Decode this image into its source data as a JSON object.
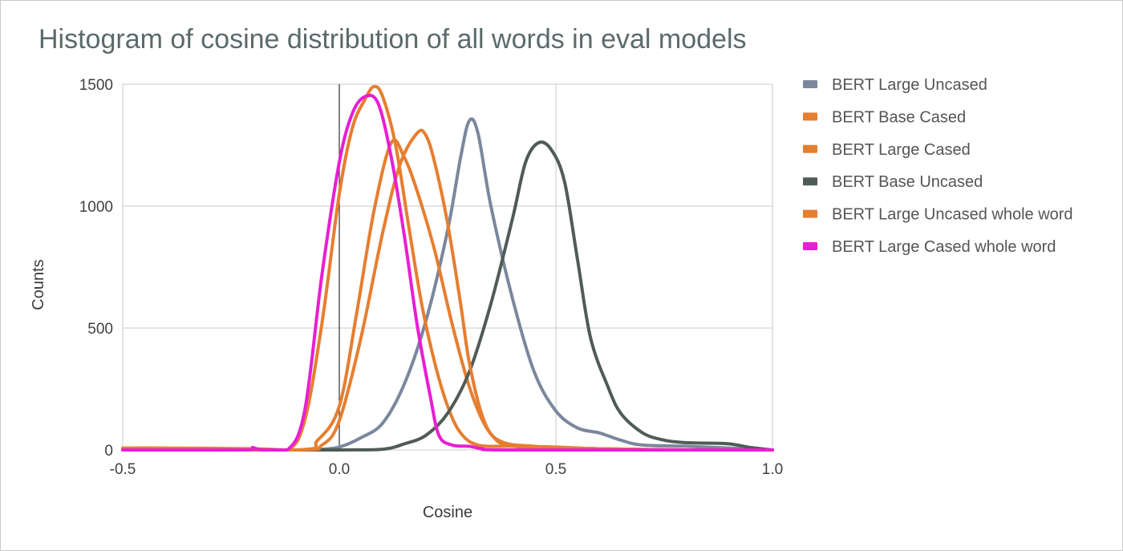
{
  "chart_data": {
    "type": "line",
    "title": "Histogram of cosine distribution of all words in eval models",
    "xlabel": "Cosine",
    "ylabel": "Counts",
    "xlim": [
      -0.5,
      1.0
    ],
    "ylim": [
      0,
      1500
    ],
    "x_ticks": [
      "-0.5",
      "0.0",
      "0.5",
      "1.0"
    ],
    "x_tick_values": [
      -0.5,
      0.0,
      0.5,
      1.0
    ],
    "y_ticks": [
      "0",
      "500",
      "1000",
      "1500"
    ],
    "y_tick_values": [
      0,
      500,
      1000,
      1500
    ],
    "grid": true,
    "legend_position": "right",
    "series": [
      {
        "name": "BERT Large Uncased",
        "color": "#7b879c",
        "points": [
          [
            -0.5,
            0
          ],
          [
            -0.1,
            0
          ],
          [
            -0.05,
            2
          ],
          [
            0.0,
            12
          ],
          [
            0.05,
            50
          ],
          [
            0.1,
            110
          ],
          [
            0.15,
            270
          ],
          [
            0.2,
            530
          ],
          [
            0.25,
            900
          ],
          [
            0.28,
            1200
          ],
          [
            0.3,
            1350
          ],
          [
            0.32,
            1300
          ],
          [
            0.35,
            1000
          ],
          [
            0.4,
            620
          ],
          [
            0.45,
            320
          ],
          [
            0.5,
            160
          ],
          [
            0.55,
            90
          ],
          [
            0.6,
            70
          ],
          [
            0.65,
            40
          ],
          [
            0.7,
            20
          ],
          [
            0.8,
            15
          ],
          [
            0.9,
            8
          ],
          [
            1.0,
            0
          ]
        ]
      },
      {
        "name": "BERT Base Cased",
        "color": "#e67e30",
        "points": [
          [
            -0.5,
            8
          ],
          [
            -0.4,
            8
          ],
          [
            -0.2,
            5
          ],
          [
            -0.12,
            0
          ],
          [
            -0.08,
            120
          ],
          [
            -0.04,
            520
          ],
          [
            0.0,
            1050
          ],
          [
            0.03,
            1320
          ],
          [
            0.06,
            1440
          ],
          [
            0.08,
            1490
          ],
          [
            0.1,
            1450
          ],
          [
            0.13,
            1250
          ],
          [
            0.16,
            920
          ],
          [
            0.19,
            600
          ],
          [
            0.22,
            360
          ],
          [
            0.25,
            180
          ],
          [
            0.28,
            70
          ],
          [
            0.32,
            20
          ],
          [
            0.4,
            15
          ],
          [
            0.5,
            12
          ],
          [
            0.6,
            5
          ],
          [
            0.8,
            0
          ],
          [
            1.0,
            0
          ]
        ]
      },
      {
        "name": "BERT Large Cased",
        "color": "#e67e30",
        "points": [
          [
            -0.5,
            0
          ],
          [
            -0.1,
            0
          ],
          [
            -0.05,
            40
          ],
          [
            0.0,
            180
          ],
          [
            0.04,
            560
          ],
          [
            0.08,
            980
          ],
          [
            0.12,
            1260
          ],
          [
            0.15,
            1200
          ],
          [
            0.18,
            1060
          ],
          [
            0.22,
            820
          ],
          [
            0.26,
            520
          ],
          [
            0.3,
            260
          ],
          [
            0.34,
            90
          ],
          [
            0.38,
            30
          ],
          [
            0.45,
            15
          ],
          [
            0.5,
            10
          ],
          [
            0.6,
            5
          ],
          [
            0.8,
            0
          ],
          [
            1.0,
            0
          ]
        ]
      },
      {
        "name": "BERT Base Uncased",
        "color": "#4f5c56",
        "points": [
          [
            -0.5,
            0
          ],
          [
            0.0,
            0
          ],
          [
            0.1,
            3
          ],
          [
            0.15,
            25
          ],
          [
            0.2,
            60
          ],
          [
            0.25,
            150
          ],
          [
            0.3,
            320
          ],
          [
            0.35,
            600
          ],
          [
            0.4,
            950
          ],
          [
            0.43,
            1180
          ],
          [
            0.46,
            1260
          ],
          [
            0.49,
            1230
          ],
          [
            0.52,
            1100
          ],
          [
            0.55,
            780
          ],
          [
            0.58,
            460
          ],
          [
            0.62,
            260
          ],
          [
            0.65,
            150
          ],
          [
            0.7,
            70
          ],
          [
            0.75,
            40
          ],
          [
            0.8,
            30
          ],
          [
            0.85,
            28
          ],
          [
            0.9,
            25
          ],
          [
            0.95,
            10
          ],
          [
            1.0,
            0
          ]
        ]
      },
      {
        "name": "BERT Large Uncased whole word",
        "color": "#e67e30",
        "points": [
          [
            -0.5,
            0
          ],
          [
            -0.1,
            0
          ],
          [
            -0.04,
            20
          ],
          [
            0.0,
            120
          ],
          [
            0.05,
            460
          ],
          [
            0.1,
            890
          ],
          [
            0.14,
            1170
          ],
          [
            0.18,
            1300
          ],
          [
            0.2,
            1290
          ],
          [
            0.22,
            1180
          ],
          [
            0.25,
            930
          ],
          [
            0.28,
            600
          ],
          [
            0.3,
            360
          ],
          [
            0.33,
            140
          ],
          [
            0.36,
            45
          ],
          [
            0.4,
            15
          ],
          [
            0.5,
            10
          ],
          [
            0.6,
            5
          ],
          [
            0.8,
            0
          ],
          [
            1.0,
            0
          ]
        ]
      },
      {
        "name": "BERT Large Cased whole word",
        "color": "#e91ed2",
        "points": [
          [
            -0.5,
            0
          ],
          [
            -0.22,
            0
          ],
          [
            -0.2,
            10
          ],
          [
            -0.18,
            0
          ],
          [
            -0.12,
            0
          ],
          [
            -0.08,
            160
          ],
          [
            -0.04,
            720
          ],
          [
            0.0,
            1180
          ],
          [
            0.03,
            1380
          ],
          [
            0.06,
            1450
          ],
          [
            0.09,
            1420
          ],
          [
            0.12,
            1200
          ],
          [
            0.15,
            880
          ],
          [
            0.18,
            510
          ],
          [
            0.21,
            220
          ],
          [
            0.23,
            60
          ],
          [
            0.26,
            20
          ],
          [
            0.3,
            15
          ],
          [
            0.33,
            5
          ],
          [
            0.4,
            0
          ],
          [
            1.0,
            0
          ]
        ]
      }
    ]
  }
}
